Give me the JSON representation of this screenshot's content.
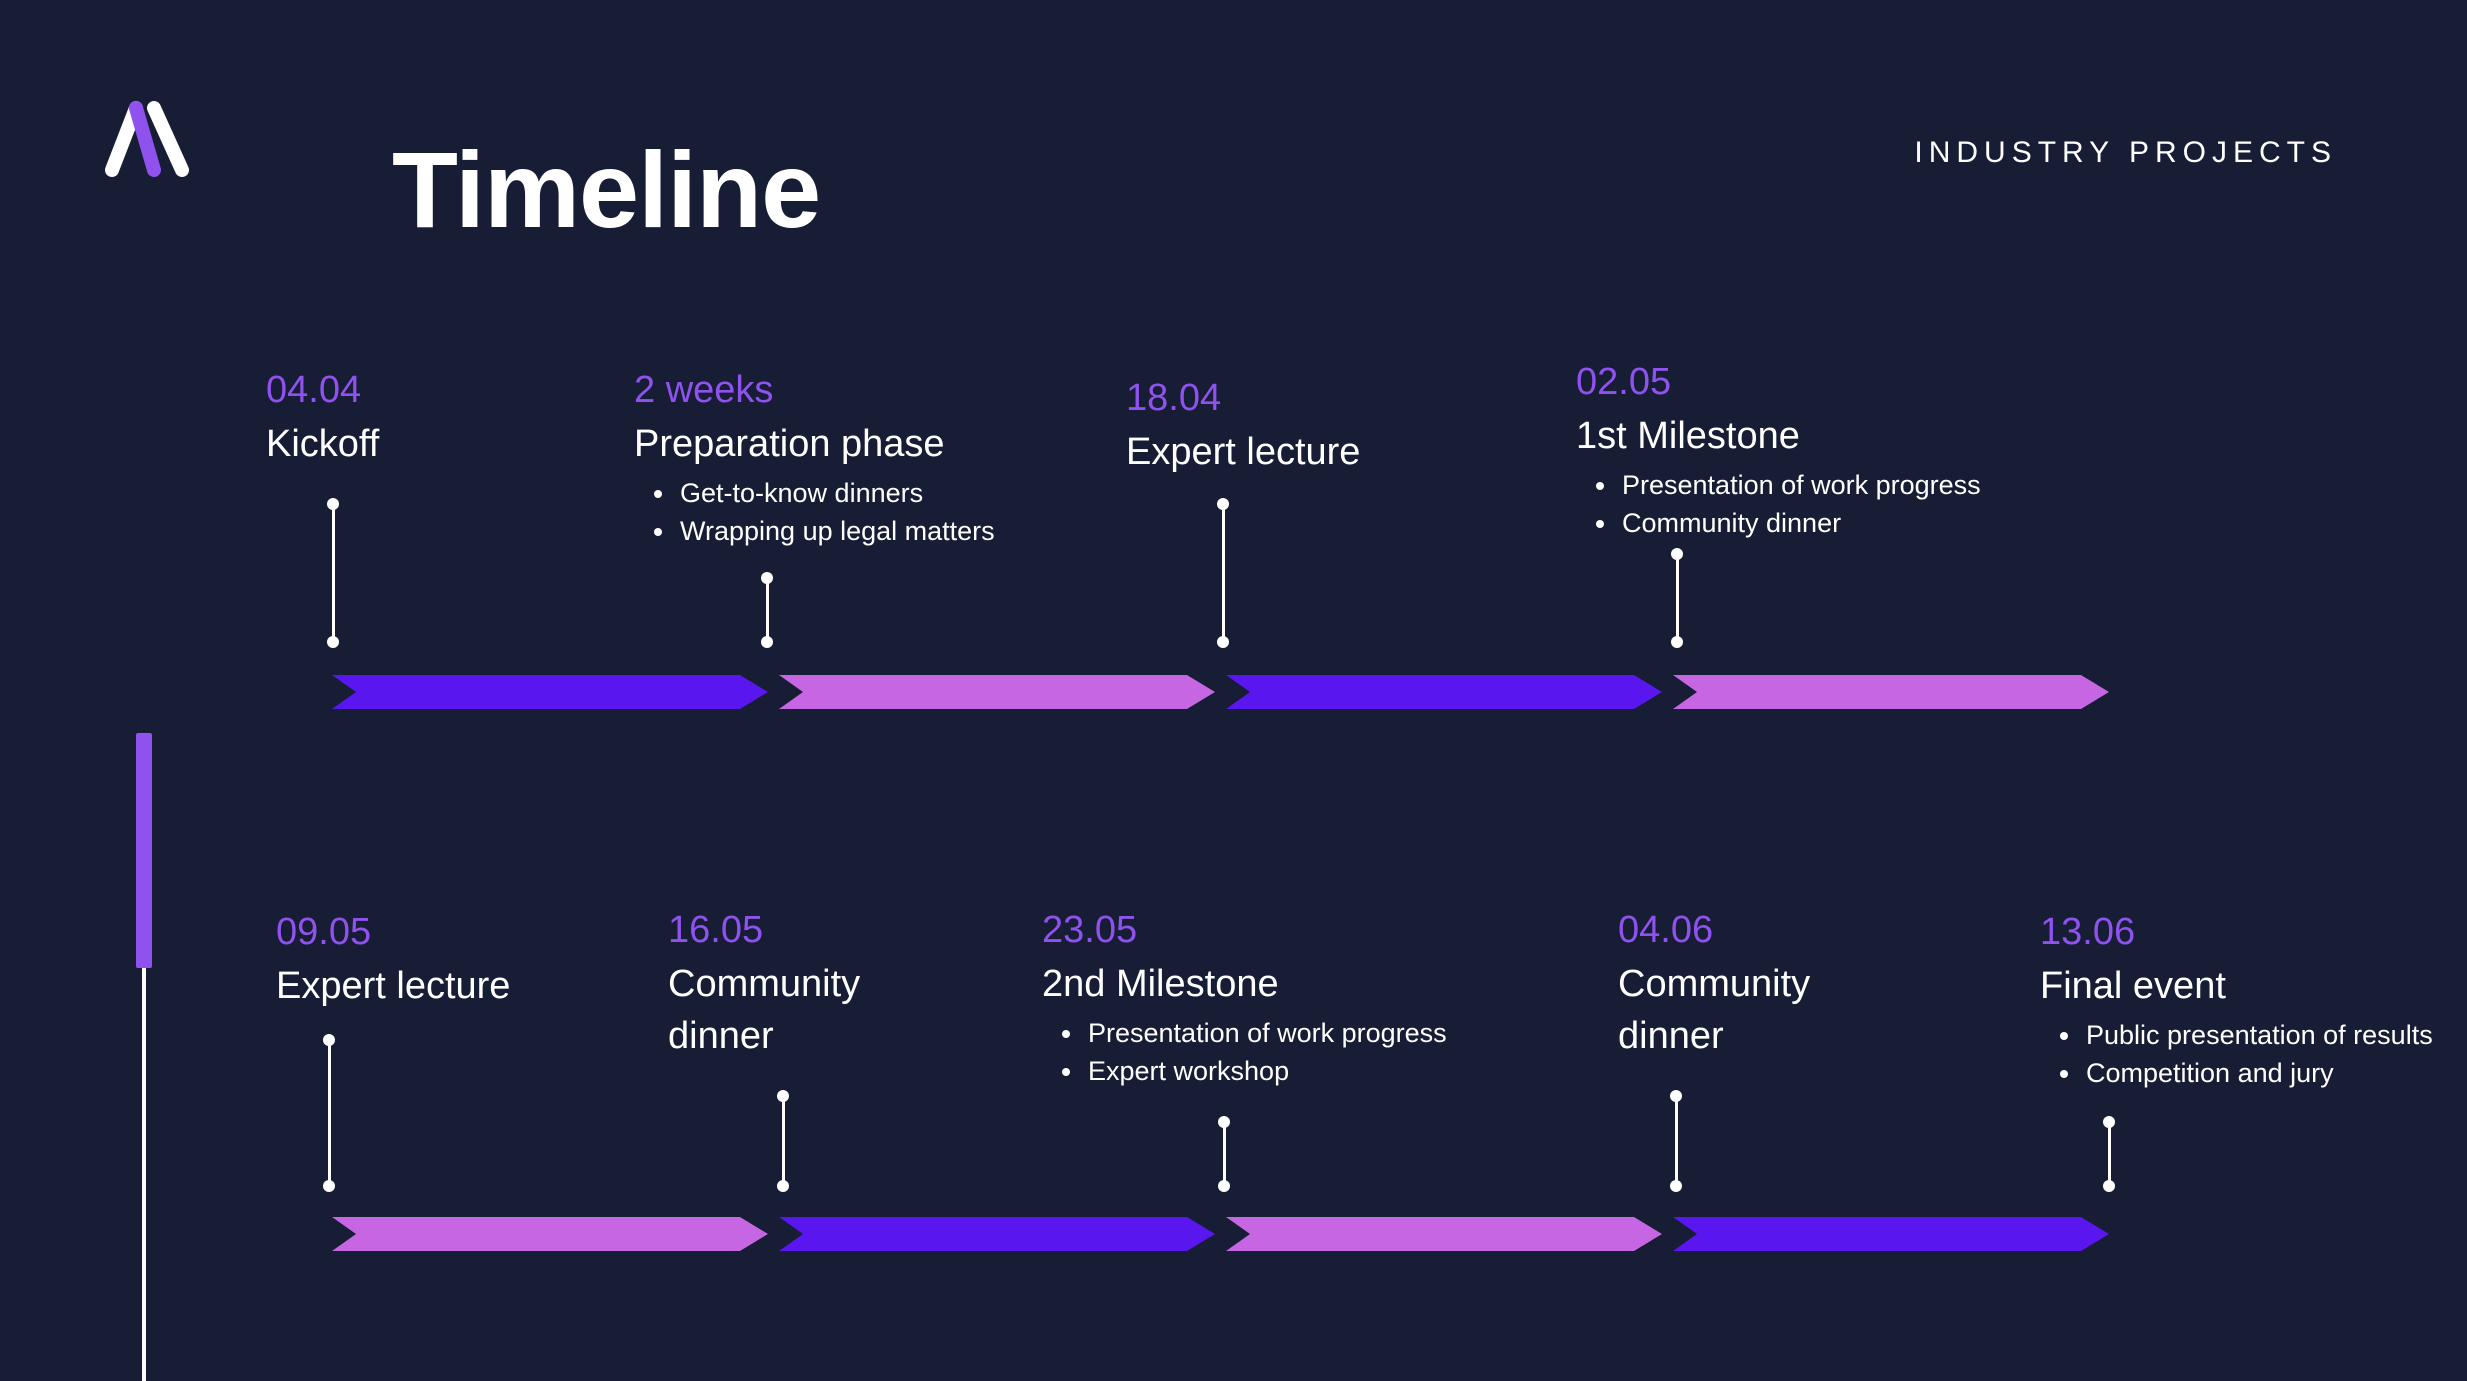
{
  "brand": {
    "logo_icon": "brand-logo-icon",
    "accent": "#8f52ee",
    "background": "#161d35"
  },
  "header": {
    "title": "Timeline",
    "section_label": "INDUSTRY PROJECTS"
  },
  "colors": {
    "segment_dark": "#5a16ee",
    "segment_light": "#c666e2",
    "date_text": "#8f52ee"
  },
  "rows": [
    {
      "milestones": [
        {
          "date": "04.04",
          "title": "Kickoff",
          "bullets": []
        },
        {
          "date": "2 weeks",
          "title": "Preparation phase",
          "bullets": [
            "Get-to-know dinners",
            "Wrapping up legal matters"
          ]
        },
        {
          "date": "18.04",
          "title": "Expert lecture",
          "bullets": []
        },
        {
          "date": "02.05",
          "title": "1st Milestone",
          "bullets": [
            "Presentation of work progress",
            "Community dinner"
          ]
        }
      ],
      "segments": [
        "dark",
        "light",
        "dark",
        "light"
      ]
    },
    {
      "milestones": [
        {
          "date": "09.05",
          "title": "Expert lecture",
          "bullets": []
        },
        {
          "date": "16.05",
          "title": "Community dinner",
          "bullets": []
        },
        {
          "date": "23.05",
          "title": "2nd Milestone",
          "bullets": [
            "Presentation of work progress",
            "Expert workshop"
          ]
        },
        {
          "date": "04.06",
          "title": "Community dinner",
          "bullets": []
        },
        {
          "date": "13.06",
          "title": "Final event",
          "bullets": [
            "Public presentation of results",
            "Competition and jury"
          ]
        }
      ],
      "segments": [
        "light",
        "dark",
        "light",
        "dark"
      ]
    }
  ]
}
